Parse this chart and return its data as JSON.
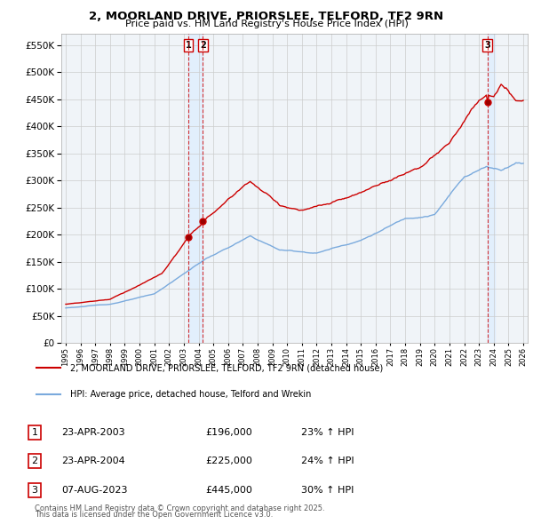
{
  "title_line1": "2, MOORLAND DRIVE, PRIORSLEE, TELFORD, TF2 9RN",
  "title_line2": "Price paid vs. HM Land Registry's House Price Index (HPI)",
  "ytick_values": [
    0,
    50000,
    100000,
    150000,
    200000,
    250000,
    300000,
    350000,
    400000,
    450000,
    500000,
    550000
  ],
  "xlim": [
    1994.7,
    2026.3
  ],
  "ylim": [
    0,
    570000
  ],
  "red_color": "#cc0000",
  "blue_color": "#7aaadd",
  "shade_color": "#ddeeff",
  "grid_color": "#cccccc",
  "background_color": "#f0f4f8",
  "sale_points": [
    {
      "index": 1,
      "date_label": "23-APR-2003",
      "x": 2003.3,
      "price": 196000,
      "pct": "23%",
      "label": "1"
    },
    {
      "index": 2,
      "date_label": "23-APR-2004",
      "x": 2004.3,
      "price": 225000,
      "pct": "24%",
      "label": "2"
    },
    {
      "index": 3,
      "date_label": "07-AUG-2023",
      "x": 2023.58,
      "price": 445000,
      "pct": "30%",
      "label": "3"
    }
  ],
  "legend_red_label": "2, MOORLAND DRIVE, PRIORSLEE, TELFORD, TF2 9RN (detached house)",
  "legend_blue_label": "HPI: Average price, detached house, Telford and Wrekin",
  "footer_line1": "Contains HM Land Registry data © Crown copyright and database right 2025.",
  "footer_line2": "This data is licensed under the Open Government Licence v3.0."
}
